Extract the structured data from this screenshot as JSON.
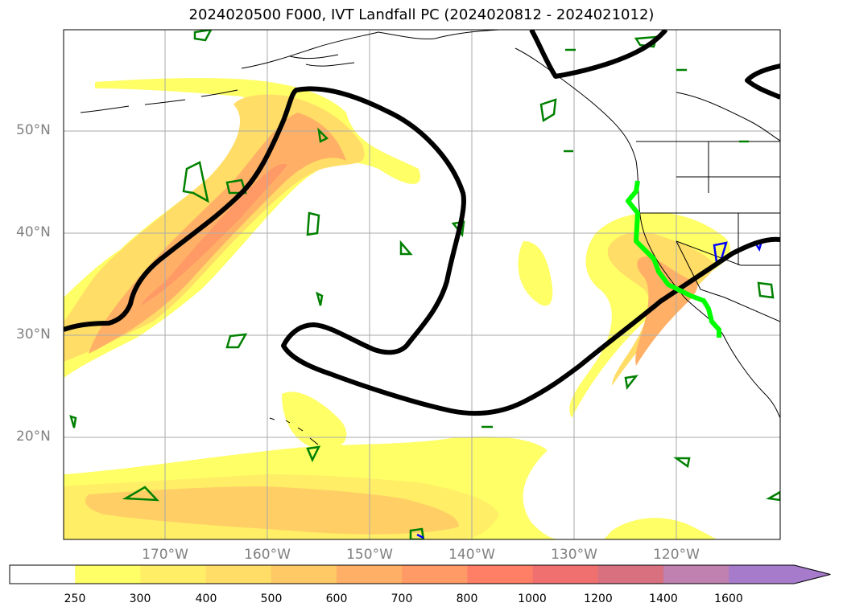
{
  "title": "2024020500 F000, IVT Landfall PC (2024020812 - 2024021012)",
  "lat_labels": [
    "50°N",
    "40°N",
    "30°N",
    "20°N"
  ],
  "lon_labels": [
    "170°W",
    "160°W",
    "150°W",
    "140°W",
    "130°W",
    "120°W"
  ],
  "colorbar": {
    "labels": [
      "250",
      "300",
      "400",
      "500",
      "600",
      "700",
      "800",
      "1000",
      "1200",
      "1400",
      "1600"
    ],
    "colors": [
      "#ffffff",
      "#ffff66",
      "#ffee66",
      "#ffdd66",
      "#ffc966",
      "#ffb066",
      "#ff9966",
      "#ff7f66",
      "#f07070",
      "#d87080",
      "#c080b0",
      "#a77bcc"
    ],
    "extend": "max"
  },
  "colors": {
    "contour": "#000000",
    "landfall_line": "#00ff00",
    "green_contour": "#008000",
    "blue_contour": "#0000ff",
    "gridlines": "#aaaaaa"
  }
}
